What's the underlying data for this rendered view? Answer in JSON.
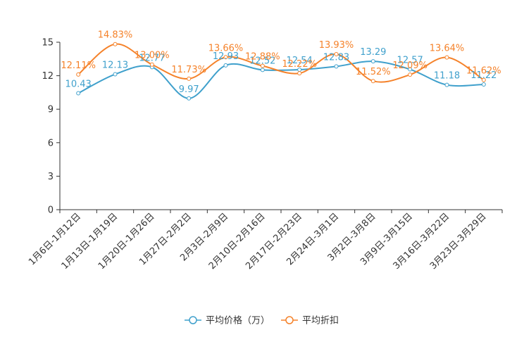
{
  "chart_data": {
    "type": "line",
    "categories": [
      "1月6日-1月12日",
      "1月13日-1月19日",
      "1月20日-1月26日",
      "1月27日-2月2日",
      "2月3日-2月9日",
      "2月10日-2月16日",
      "2月17日-2月23日",
      "2月24日-3月1日",
      "3月2日-3月8日",
      "3月9日-3月15日",
      "3月16日-3月22日",
      "3月23日-3月29日"
    ],
    "series": [
      {
        "name": "平均价格（万）",
        "color": "#3fa0cc",
        "values": [
          10.43,
          12.13,
          12.77,
          9.97,
          12.93,
          12.52,
          12.54,
          12.83,
          13.29,
          12.57,
          11.18,
          11.22
        ],
        "labels": [
          "10.43",
          "12.13",
          "12.77",
          "9.97",
          "12.93",
          "12.52",
          "12.54",
          "12.83",
          "13.29",
          "12.57",
          "11.18",
          "11.22"
        ]
      },
      {
        "name": "平均折扣",
        "color": "#f5822a",
        "values": [
          12.11,
          14.83,
          13.0,
          11.73,
          13.66,
          12.88,
          12.22,
          13.93,
          11.52,
          12.09,
          13.64,
          11.62
        ],
        "labels": [
          "12.11%",
          "14.83%",
          "13.00%",
          "11.73%",
          "13.66%",
          "12.88%",
          "12.22%",
          "13.93%",
          "11.52%",
          "12.09%",
          "13.64%",
          "11.62%"
        ]
      }
    ],
    "yticks": [
      "0",
      "3",
      "6",
      "9",
      "12",
      "15"
    ],
    "ylim": [
      0,
      15
    ],
    "title": "",
    "xlabel": "",
    "ylabel": "",
    "legend_position": "bottom-center"
  }
}
